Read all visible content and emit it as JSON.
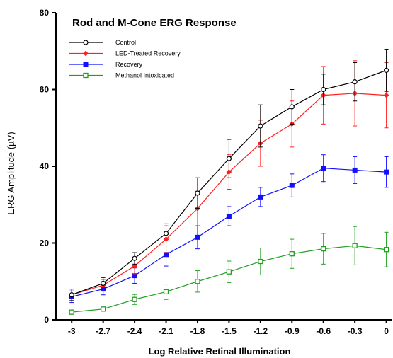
{
  "chart_data": {
    "type": "line",
    "title": "Rod and M-Cone ERG Response",
    "xlabel": "Log Relative Retinal Illumination",
    "ylabel": "ERG Amplitude (µV)",
    "x": [
      -3,
      -2.7,
      -2.4,
      -2.1,
      -1.8,
      -1.5,
      -1.2,
      -0.9,
      -0.6,
      -0.3,
      0
    ],
    "x_tick_labels": [
      "-3",
      "-2.7",
      "-2.4",
      "-2.1",
      "-1.8",
      "-1.5",
      "-1.2",
      "-0.9",
      "-0.6",
      "-0.3",
      "0"
    ],
    "y_ticks": [
      0,
      20,
      40,
      60,
      80
    ],
    "y_tick_labels": [
      "0",
      "20",
      "40",
      "60",
      "80"
    ],
    "xlim": [
      -3.15,
      0.05
    ],
    "ylim": [
      0,
      80
    ],
    "grid": false,
    "legend_position": "top-left",
    "series": [
      {
        "name": "Control",
        "color": "#000000",
        "marker": "open-circle",
        "values": [
          6.5,
          9.5,
          16,
          22.5,
          33,
          42,
          50.5,
          55.5,
          60,
          62,
          65
        ],
        "errors": [
          1.5,
          1.5,
          1.5,
          2.5,
          4,
          5,
          5.5,
          4.5,
          4,
          5,
          5.5
        ]
      },
      {
        "name": "LED-Treated Recovery",
        "color": "#ff2020",
        "marker": "filled-diamond",
        "values": [
          6.5,
          9,
          14,
          21,
          29,
          38.5,
          46,
          51,
          58.5,
          59,
          58.5
        ],
        "errors": [
          1.5,
          1.5,
          2,
          3.5,
          4.5,
          4.5,
          6,
          6,
          7.5,
          8.5,
          8.5
        ]
      },
      {
        "name": "Recovery",
        "color": "#1010ff",
        "marker": "filled-square",
        "values": [
          6,
          8,
          11.5,
          17,
          21.5,
          27,
          32,
          35,
          39.5,
          39,
          38.5
        ],
        "errors": [
          1.5,
          1.5,
          2,
          3,
          3,
          2.5,
          2.5,
          3,
          3.5,
          3.5,
          4
        ]
      },
      {
        "name": "Methanol Intoxicated",
        "color": "#20a020",
        "marker": "open-square",
        "values": [
          2,
          2.8,
          5.3,
          7.3,
          10,
          12.5,
          15.2,
          17.2,
          18.5,
          19.3,
          18.3
        ],
        "errors": [
          0.5,
          0.5,
          1.3,
          2,
          2.8,
          2.8,
          3.5,
          3.8,
          4,
          5,
          4.5
        ]
      }
    ]
  }
}
